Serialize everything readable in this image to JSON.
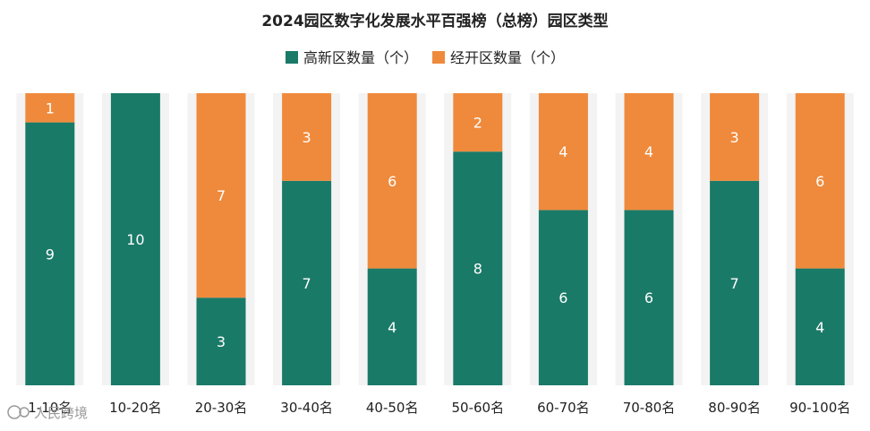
{
  "chart_data": {
    "type": "bar",
    "stacked": true,
    "title": "2024园区数字化发展水平百强榜（总榜）园区类型",
    "categories": [
      "1-10名",
      "10-20名",
      "20-30名",
      "30-40名",
      "40-50名",
      "50-60名",
      "60-70名",
      "70-80名",
      "80-90名",
      "90-100名"
    ],
    "series": [
      {
        "name": "高新区数量（个）",
        "color": "#1a7a68",
        "values": [
          9,
          10,
          3,
          7,
          4,
          8,
          6,
          6,
          7,
          4
        ]
      },
      {
        "name": "经开区数量（个）",
        "color": "#ef8a3c",
        "values": [
          1,
          0,
          7,
          3,
          6,
          2,
          4,
          4,
          3,
          6
        ]
      }
    ],
    "ylim": [
      0,
      10
    ],
    "grid": false,
    "legend": "top-center"
  },
  "watermark": "人民跨境",
  "colors": {
    "panel_bg": "#f3f3f3"
  }
}
